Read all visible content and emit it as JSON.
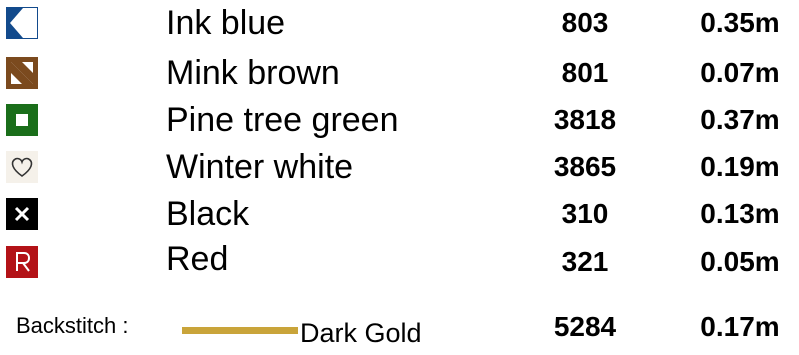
{
  "threads": [
    {
      "symbol": "ink-blue-corner-symbol",
      "color": "#124a8c",
      "name": "Ink blue",
      "code": "803",
      "length": "0.35m"
    },
    {
      "symbol": "mink-brown-diagonal-symbol",
      "color": "#7b4a1e",
      "name": "Mink brown",
      "code": "801",
      "length": "0.07m"
    },
    {
      "symbol": "pine-green-square-symbol",
      "color": "#1a6e1a",
      "name": "Pine tree green",
      "code": "3818",
      "length": "0.37m"
    },
    {
      "symbol": "heart-symbol",
      "color": "#f5f1ea",
      "name": "Winter white",
      "code": "3865",
      "length": "0.19m"
    },
    {
      "symbol": "x-symbol",
      "color": "#000000",
      "name": "Black",
      "code": "310",
      "length": "0.13m"
    },
    {
      "symbol": "r-letter-symbol",
      "color": "#b31217",
      "name": "Red",
      "code": "321",
      "length": "0.05m"
    }
  ],
  "backstitch": {
    "label": "Backstitch :",
    "color": "#c9a43a",
    "name": "Dark Gold",
    "code": "5284",
    "length": "0.17m"
  }
}
